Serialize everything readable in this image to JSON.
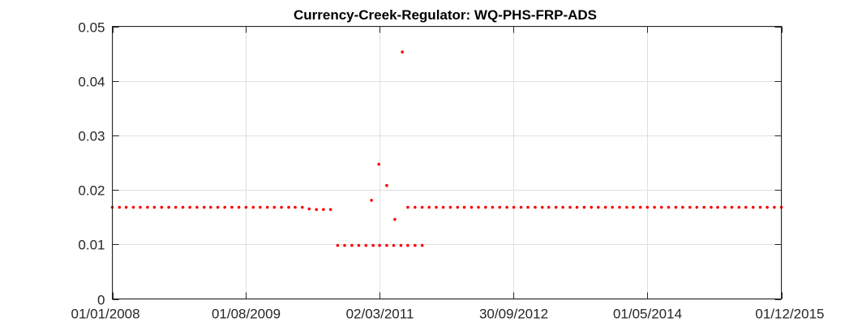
{
  "chart_data": {
    "type": "scatter",
    "title": "Currency-Creek-Regulator: WQ-PHS-FRP-ADS",
    "xlabel": "",
    "ylabel": "",
    "x_axis": "date",
    "xlim": [
      "2008-01-01",
      "2015-12-01"
    ],
    "ylim": [
      0,
      0.05
    ],
    "xticks": [
      "2008-01-01",
      "2009-08-01",
      "2011-03-02",
      "2012-09-30",
      "2014-05-01",
      "2015-12-01"
    ],
    "xtick_labels": [
      "01/01/2008",
      "01/08/2009",
      "02/03/2011",
      "30/09/2012",
      "01/05/2014",
      "01/12/2015"
    ],
    "yticks": [
      0,
      0.01,
      0.02,
      0.03,
      0.04,
      0.05
    ],
    "ytick_labels": [
      "0",
      "0.01",
      "0.02",
      "0.03",
      "0.04",
      "0.05"
    ],
    "grid": true,
    "box": true,
    "marker_color": "#ff0000",
    "series": [
      {
        "points": [
          {
            "x": "2008-01-01",
            "y": 0.0168
          },
          {
            "x": "2008-02-01",
            "y": 0.0168
          },
          {
            "x": "2008-03-01",
            "y": 0.0168
          },
          {
            "x": "2008-04-01",
            "y": 0.0168
          },
          {
            "x": "2008-05-01",
            "y": 0.0168
          },
          {
            "x": "2008-06-01",
            "y": 0.0168
          },
          {
            "x": "2008-07-01",
            "y": 0.0168
          },
          {
            "x": "2008-08-01",
            "y": 0.0168
          },
          {
            "x": "2008-09-01",
            "y": 0.0168
          },
          {
            "x": "2008-10-01",
            "y": 0.0168
          },
          {
            "x": "2008-11-01",
            "y": 0.0168
          },
          {
            "x": "2008-12-01",
            "y": 0.0168
          },
          {
            "x": "2009-01-01",
            "y": 0.0168
          },
          {
            "x": "2009-02-01",
            "y": 0.0168
          },
          {
            "x": "2009-03-01",
            "y": 0.0168
          },
          {
            "x": "2009-04-01",
            "y": 0.0168
          },
          {
            "x": "2009-05-01",
            "y": 0.0168
          },
          {
            "x": "2009-06-01",
            "y": 0.0168
          },
          {
            "x": "2009-07-01",
            "y": 0.0168
          },
          {
            "x": "2009-08-01",
            "y": 0.0168
          },
          {
            "x": "2009-09-01",
            "y": 0.0168
          },
          {
            "x": "2009-10-01",
            "y": 0.0168
          },
          {
            "x": "2009-11-01",
            "y": 0.0168
          },
          {
            "x": "2009-12-01",
            "y": 0.0168
          },
          {
            "x": "2010-01-01",
            "y": 0.0168
          },
          {
            "x": "2010-02-01",
            "y": 0.0168
          },
          {
            "x": "2010-03-01",
            "y": 0.0168
          },
          {
            "x": "2010-04-01",
            "y": 0.0168
          },
          {
            "x": "2010-05-01",
            "y": 0.0165
          },
          {
            "x": "2010-06-01",
            "y": 0.0164
          },
          {
            "x": "2010-07-01",
            "y": 0.0164
          },
          {
            "x": "2010-08-01",
            "y": 0.0164
          },
          {
            "x": "2010-09-01",
            "y": 0.0098
          },
          {
            "x": "2010-10-01",
            "y": 0.0098
          },
          {
            "x": "2010-11-01",
            "y": 0.0098
          },
          {
            "x": "2010-12-01",
            "y": 0.0098
          },
          {
            "x": "2011-01-01",
            "y": 0.0098
          },
          {
            "x": "2011-02-01",
            "y": 0.0098
          },
          {
            "x": "2011-03-01",
            "y": 0.0098
          },
          {
            "x": "2011-04-01",
            "y": 0.0098
          },
          {
            "x": "2011-05-01",
            "y": 0.0098
          },
          {
            "x": "2011-06-01",
            "y": 0.0098
          },
          {
            "x": "2011-07-01",
            "y": 0.0098
          },
          {
            "x": "2011-08-01",
            "y": 0.0098
          },
          {
            "x": "2011-09-01",
            "y": 0.0098
          },
          {
            "x": "2011-01-25",
            "y": 0.0181
          },
          {
            "x": "2011-02-26",
            "y": 0.0247
          },
          {
            "x": "2011-04-01",
            "y": 0.0208
          },
          {
            "x": "2011-05-06",
            "y": 0.0146
          },
          {
            "x": "2011-06-07",
            "y": 0.0453
          },
          {
            "x": "2011-07-01",
            "y": 0.0168
          },
          {
            "x": "2011-08-01",
            "y": 0.0168
          },
          {
            "x": "2011-09-01",
            "y": 0.0168
          },
          {
            "x": "2011-10-01",
            "y": 0.0168
          },
          {
            "x": "2011-11-01",
            "y": 0.0168
          },
          {
            "x": "2011-12-01",
            "y": 0.0168
          },
          {
            "x": "2012-01-01",
            "y": 0.0168
          },
          {
            "x": "2012-02-01",
            "y": 0.0168
          },
          {
            "x": "2012-03-01",
            "y": 0.0168
          },
          {
            "x": "2012-04-01",
            "y": 0.0168
          },
          {
            "x": "2012-05-01",
            "y": 0.0168
          },
          {
            "x": "2012-06-01",
            "y": 0.0168
          },
          {
            "x": "2012-07-01",
            "y": 0.0168
          },
          {
            "x": "2012-08-01",
            "y": 0.0168
          },
          {
            "x": "2012-09-01",
            "y": 0.0168
          },
          {
            "x": "2012-10-01",
            "y": 0.0168
          },
          {
            "x": "2012-11-01",
            "y": 0.0168
          },
          {
            "x": "2012-12-01",
            "y": 0.0168
          },
          {
            "x": "2013-01-01",
            "y": 0.0168
          },
          {
            "x": "2013-02-01",
            "y": 0.0168
          },
          {
            "x": "2013-03-01",
            "y": 0.0168
          },
          {
            "x": "2013-04-01",
            "y": 0.0168
          },
          {
            "x": "2013-05-01",
            "y": 0.0168
          },
          {
            "x": "2013-06-01",
            "y": 0.0168
          },
          {
            "x": "2013-07-01",
            "y": 0.0168
          },
          {
            "x": "2013-08-01",
            "y": 0.0168
          },
          {
            "x": "2013-09-01",
            "y": 0.0168
          },
          {
            "x": "2013-10-01",
            "y": 0.0168
          },
          {
            "x": "2013-11-01",
            "y": 0.0168
          },
          {
            "x": "2013-12-01",
            "y": 0.0168
          },
          {
            "x": "2014-01-01",
            "y": 0.0168
          },
          {
            "x": "2014-02-01",
            "y": 0.0168
          },
          {
            "x": "2014-03-01",
            "y": 0.0168
          },
          {
            "x": "2014-04-01",
            "y": 0.0168
          },
          {
            "x": "2014-05-01",
            "y": 0.0168
          },
          {
            "x": "2014-06-01",
            "y": 0.0168
          },
          {
            "x": "2014-07-01",
            "y": 0.0168
          },
          {
            "x": "2014-08-01",
            "y": 0.0168
          },
          {
            "x": "2014-09-01",
            "y": 0.0168
          },
          {
            "x": "2014-10-01",
            "y": 0.0168
          },
          {
            "x": "2014-11-01",
            "y": 0.0168
          },
          {
            "x": "2014-12-01",
            "y": 0.0168
          },
          {
            "x": "2015-01-01",
            "y": 0.0168
          },
          {
            "x": "2015-02-01",
            "y": 0.0168
          },
          {
            "x": "2015-03-01",
            "y": 0.0168
          },
          {
            "x": "2015-04-01",
            "y": 0.0168
          },
          {
            "x": "2015-05-01",
            "y": 0.0168
          },
          {
            "x": "2015-06-01",
            "y": 0.0168
          },
          {
            "x": "2015-07-01",
            "y": 0.0168
          },
          {
            "x": "2015-08-01",
            "y": 0.0168
          },
          {
            "x": "2015-09-01",
            "y": 0.0168
          },
          {
            "x": "2015-10-01",
            "y": 0.0168
          },
          {
            "x": "2015-11-01",
            "y": 0.0168
          },
          {
            "x": "2015-12-01",
            "y": 0.0168
          }
        ]
      }
    ]
  }
}
